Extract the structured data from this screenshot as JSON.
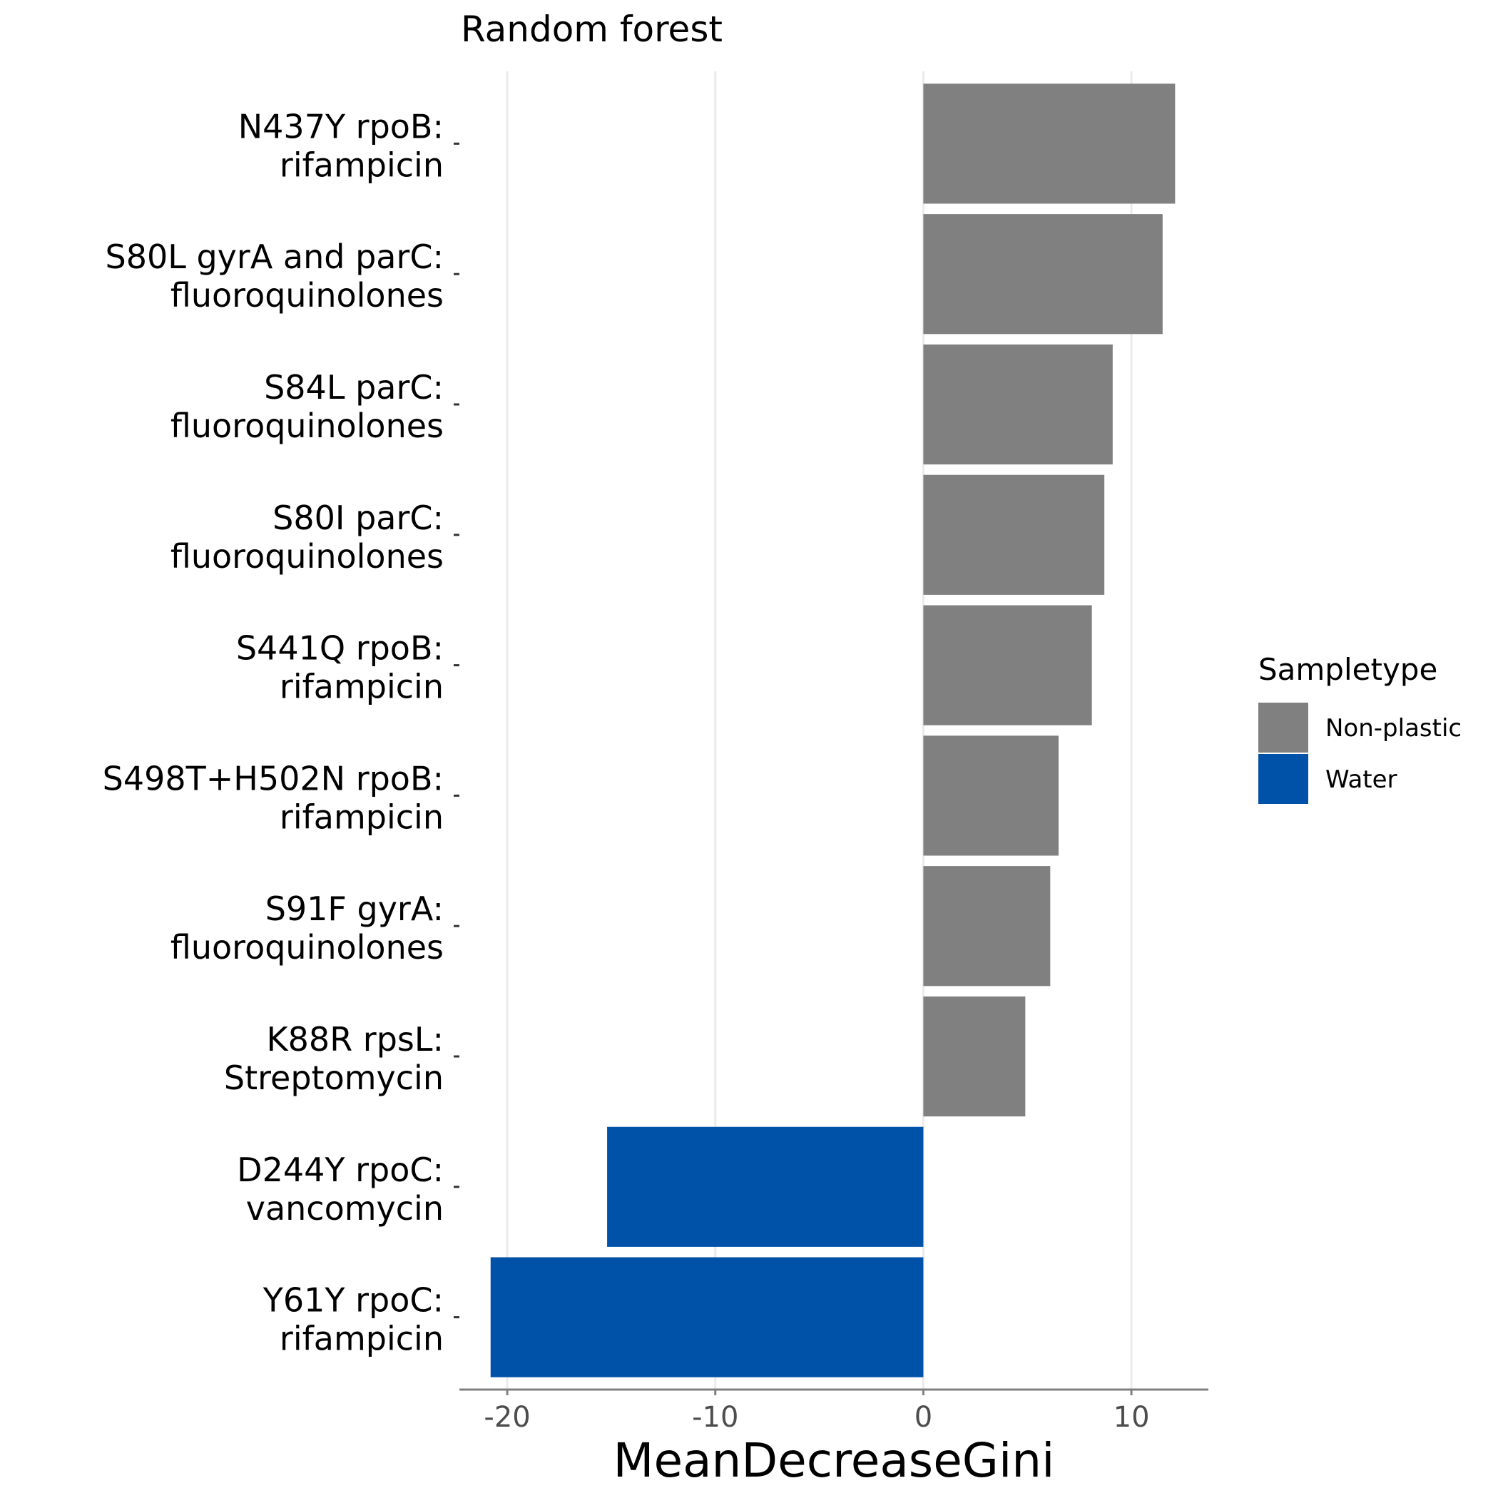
{
  "chart_data": {
    "type": "bar",
    "orientation": "horizontal",
    "title": "Random forest",
    "xlabel": "MeanDecreaseGini",
    "ylabel": "",
    "xlim": [
      -22.3,
      13.7
    ],
    "xticks": [
      -20,
      -10,
      0,
      10
    ],
    "xtick_labels": [
      "-20",
      "-10",
      "0",
      "10"
    ],
    "grid": "vertical major",
    "legend": {
      "title": "Sampletype",
      "position": "right",
      "entries": [
        {
          "label": "Non-plastic",
          "color": "#808080"
        },
        {
          "label": "Water",
          "color": "#0052A8"
        }
      ]
    },
    "bars": [
      {
        "label_line1": "N437Y rpoB:",
        "label_line2": "rifampicin",
        "value": 12.1,
        "group": "Non-plastic"
      },
      {
        "label_line1": "S80L gyrA and parC:",
        "label_line2": "fluoroquinolones",
        "value": 11.5,
        "group": "Non-plastic"
      },
      {
        "label_line1": "S84L parC:",
        "label_line2": "fluoroquinolones",
        "value": 9.1,
        "group": "Non-plastic"
      },
      {
        "label_line1": "S80I parC:",
        "label_line2": "fluoroquinolones",
        "value": 8.7,
        "group": "Non-plastic"
      },
      {
        "label_line1": "S441Q rpoB:",
        "label_line2": "rifampicin",
        "value": 8.1,
        "group": "Non-plastic"
      },
      {
        "label_line1": "S498T+H502N rpoB:",
        "label_line2": "rifampicin",
        "value": 6.5,
        "group": "Non-plastic"
      },
      {
        "label_line1": "S91F gyrA:",
        "label_line2": "fluoroquinolones",
        "value": 6.1,
        "group": "Non-plastic"
      },
      {
        "label_line1": "K88R rpsL:",
        "label_line2": "Streptomycin",
        "value": 4.9,
        "group": "Non-plastic"
      },
      {
        "label_line1": "D244Y rpoC:",
        "label_line2": "vancomycin",
        "value": -15.2,
        "group": "Water"
      },
      {
        "label_line1": "Y61Y rpoC:",
        "label_line2": "rifampicin",
        "value": -20.8,
        "group": "Water"
      }
    ]
  }
}
